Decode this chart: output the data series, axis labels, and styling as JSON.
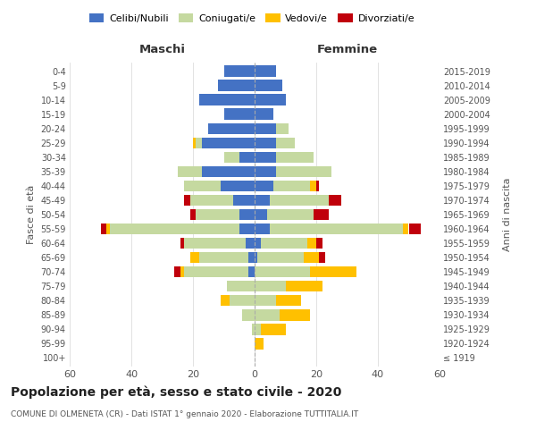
{
  "age_groups": [
    "100+",
    "95-99",
    "90-94",
    "85-89",
    "80-84",
    "75-79",
    "70-74",
    "65-69",
    "60-64",
    "55-59",
    "50-54",
    "45-49",
    "40-44",
    "35-39",
    "30-34",
    "25-29",
    "20-24",
    "15-19",
    "10-14",
    "5-9",
    "0-4"
  ],
  "birth_years": [
    "≤ 1919",
    "1920-1924",
    "1925-1929",
    "1930-1934",
    "1935-1939",
    "1940-1944",
    "1945-1949",
    "1950-1954",
    "1955-1959",
    "1960-1964",
    "1965-1969",
    "1970-1974",
    "1975-1979",
    "1980-1984",
    "1985-1989",
    "1990-1994",
    "1995-1999",
    "2000-2004",
    "2005-2009",
    "2010-2014",
    "2015-2019"
  ],
  "male": {
    "celibi": [
      0,
      0,
      0,
      0,
      0,
      0,
      2,
      2,
      3,
      5,
      5,
      7,
      11,
      17,
      5,
      17,
      15,
      10,
      18,
      12,
      10
    ],
    "coniugati": [
      0,
      0,
      1,
      4,
      8,
      9,
      21,
      16,
      20,
      42,
      14,
      14,
      12,
      8,
      5,
      2,
      0,
      0,
      0,
      0,
      0
    ],
    "vedovi": [
      0,
      0,
      0,
      0,
      3,
      0,
      1,
      3,
      0,
      1,
      0,
      0,
      0,
      0,
      0,
      1,
      0,
      0,
      0,
      0,
      0
    ],
    "divorziati": [
      0,
      0,
      0,
      0,
      0,
      0,
      2,
      0,
      1,
      2,
      2,
      2,
      0,
      0,
      0,
      0,
      0,
      0,
      0,
      0,
      0
    ]
  },
  "female": {
    "nubili": [
      0,
      0,
      0,
      0,
      0,
      0,
      0,
      1,
      2,
      5,
      4,
      5,
      6,
      7,
      7,
      7,
      7,
      6,
      10,
      9,
      7
    ],
    "coniugate": [
      0,
      0,
      2,
      8,
      7,
      10,
      18,
      15,
      15,
      43,
      15,
      19,
      12,
      18,
      12,
      6,
      4,
      0,
      0,
      0,
      0
    ],
    "vedove": [
      0,
      3,
      8,
      10,
      8,
      12,
      15,
      5,
      3,
      2,
      0,
      0,
      2,
      0,
      0,
      0,
      0,
      0,
      0,
      0,
      0
    ],
    "divorziate": [
      0,
      0,
      0,
      0,
      0,
      0,
      0,
      2,
      2,
      4,
      5,
      4,
      1,
      0,
      0,
      0,
      0,
      0,
      0,
      0,
      0
    ]
  },
  "colors": {
    "celibi": "#4472c4",
    "coniugati": "#c5d9a0",
    "vedovi": "#ffc000",
    "divorziati": "#c0000b"
  },
  "xlim": 60,
  "title": "Popolazione per età, sesso e stato civile - 2020",
  "subtitle": "COMUNE DI OLMENETA (CR) - Dati ISTAT 1° gennaio 2020 - Elaborazione TUTTITALIA.IT",
  "ylabel_left": "Fasce di età",
  "ylabel_right": "Anni di nascita",
  "xlabel_left": "Maschi",
  "xlabel_right": "Femmine"
}
